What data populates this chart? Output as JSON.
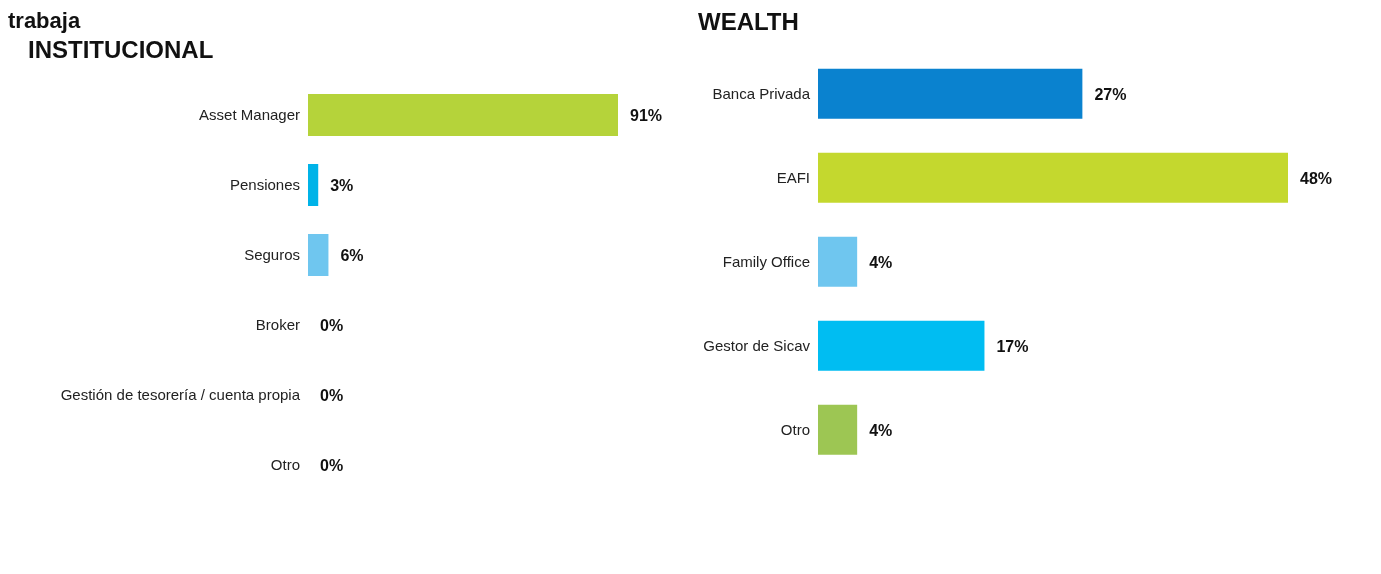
{
  "chart_data": [
    {
      "type": "bar",
      "orientation": "horizontal",
      "title": "INSTITUCIONAL",
      "annotations": [
        "trabaja"
      ],
      "categories": [
        "Asset Manager",
        "Pensiones",
        "Seguros",
        "Broker",
        "Gestión de tesorería / cuenta propia",
        "Otro"
      ],
      "values": [
        91,
        3,
        6,
        0,
        0,
        0
      ],
      "value_labels": [
        "91%",
        "3%",
        "6%",
        "0%",
        "0%",
        "0%"
      ],
      "colors": [
        "#b5d33a",
        "#00b3e8",
        "#6fc6ef",
        "#8fbf4a",
        "#0b6fb8",
        "#4e8aa6"
      ]
    },
    {
      "type": "bar",
      "orientation": "horizontal",
      "title": "WEALTH",
      "categories": [
        "Banca Privada",
        "EAFI",
        "Family Office",
        "Gestor de Sicav",
        "Otro"
      ],
      "values": [
        27,
        48,
        4,
        17,
        4
      ],
      "value_labels": [
        "27%",
        "48%",
        "4%",
        "17%",
        "4%"
      ],
      "colors": [
        "#0a82cf",
        "#c4d82e",
        "#6fc6ef",
        "#00bdf2",
        "#9dc653"
      ]
    }
  ]
}
